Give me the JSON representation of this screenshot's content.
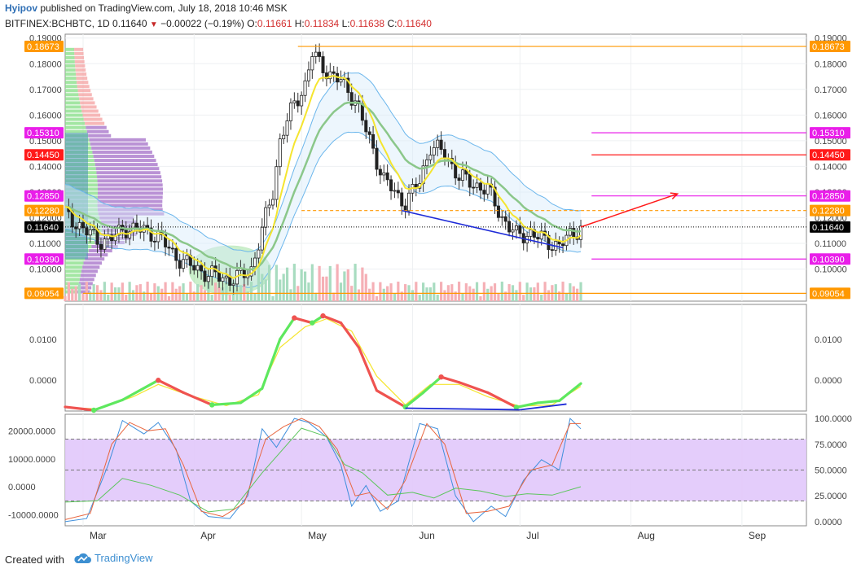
{
  "header": {
    "author": "Hyipov",
    "published_text": "published on TradingView.com, July 18, 2018 10:46 MSK",
    "symbol": "BITFINEX:BCHBTC, 1D",
    "last": "0.11640",
    "change_arrow": "▼",
    "change": "−0.00022 (−0.19%)",
    "open_label": "O:",
    "open": "0.11661",
    "high_label": "H:",
    "high": "0.11834",
    "low_label": "L:",
    "low": "0.11638",
    "close_label": "C:",
    "close": "0.11640"
  },
  "footer": {
    "created_with": "Created with",
    "brand": "TradingView",
    "logo_icon": "tradingview-cloud-icon"
  },
  "colors": {
    "up": "#53b987",
    "down": "#eb4d5c",
    "orange": "#ff9800",
    "magenta": "#e91ee9",
    "red": "#ff1a1a",
    "blue": "#1e2bd8",
    "ema_fast": "#f5e52f",
    "ema_slow": "#8bc78a",
    "band": "#6bb6ec",
    "last_bg": "#000000",
    "rsi_band": "#e1c8fb"
  },
  "chart_data": [
    {
      "type": "candlestick",
      "title": "BITFINEX:BCHBTC, 1D",
      "x_tick_labels": [
        "Mar",
        "Apr",
        "May",
        "Jun",
        "Jul",
        "Aug",
        "Sep"
      ],
      "x_range": [
        "2018-02-24",
        "2018-09-19"
      ],
      "y_range": [
        0.0875,
        0.1915
      ],
      "y_tick_labels": [
        "0.19000",
        "0.18000",
        "0.17000",
        "0.16000",
        "0.15000",
        "0.14000",
        "0.13000",
        "0.12000",
        "0.11000",
        "0.10000"
      ],
      "y_ticks": [
        0.19,
        0.18,
        0.17,
        0.16,
        0.15,
        0.14,
        0.13,
        0.12,
        0.11,
        0.1
      ],
      "grid": true,
      "price_labels": [
        {
          "text": "0.18673",
          "value": 0.18673,
          "color": "orange"
        },
        {
          "text": "0.15310",
          "value": 0.1531,
          "color": "magenta"
        },
        {
          "text": "0.14450",
          "value": 0.1445,
          "color": "red"
        },
        {
          "text": "0.12850",
          "value": 0.1285,
          "color": "magenta"
        },
        {
          "text": "0.12280",
          "value": 0.1228,
          "color": "orange"
        },
        {
          "text": "0.11640",
          "value": 0.1164,
          "color": "last_bg"
        },
        {
          "text": "0.10390",
          "value": 0.1039,
          "color": "magenta"
        },
        {
          "text": "0.09054",
          "value": 0.09054,
          "color": "orange"
        }
      ],
      "horizontal_lines": [
        {
          "value": 0.18673,
          "from": "2018-04-30",
          "color": "orange",
          "style": "solid"
        },
        {
          "value": 0.1531,
          "from": "2018-07-21",
          "color": "magenta",
          "style": "solid"
        },
        {
          "value": 0.1445,
          "from": "2018-07-21",
          "color": "red",
          "style": "solid"
        },
        {
          "value": 0.1285,
          "from": "2018-07-21",
          "color": "magenta",
          "style": "solid"
        },
        {
          "value": 0.1228,
          "from": "2018-05-01",
          "color": "orange",
          "style": "dashed"
        },
        {
          "value": 0.1039,
          "from": "2018-07-21",
          "color": "magenta",
          "style": "solid"
        },
        {
          "value": 0.09054,
          "from": "2018-03-01",
          "color": "orange",
          "style": "solid"
        },
        {
          "value": 0.1164,
          "from": "2018-02-24",
          "color": "last_bg",
          "style": "dotted"
        }
      ],
      "trend_lines": [
        {
          "from": [
            "2018-05-29",
            0.1228
          ],
          "to": [
            "2018-07-13",
            0.1083
          ],
          "color": "blue"
        },
        {
          "from": [
            "2018-07-18",
            0.1164
          ],
          "to": [
            "2018-08-14",
            0.1293
          ],
          "color": "red",
          "arrow": true
        }
      ],
      "ellipse": {
        "center": [
          "2018-04-11",
          0.0995
        ],
        "color": "#5cc65c"
      },
      "closes": [
        [
          "2018-02-24",
          0.121
        ],
        [
          "2018-03-01",
          0.116
        ],
        [
          "2018-03-05",
          0.111
        ],
        [
          "2018-03-09",
          0.112
        ],
        [
          "2018-03-13",
          0.116
        ],
        [
          "2018-03-18",
          0.115
        ],
        [
          "2018-03-22",
          0.113
        ],
        [
          "2018-03-26",
          0.106
        ],
        [
          "2018-03-30",
          0.102
        ],
        [
          "2018-04-02",
          0.1
        ],
        [
          "2018-04-05",
          0.098
        ],
        [
          "2018-04-08",
          0.097
        ],
        [
          "2018-04-11",
          0.096
        ],
        [
          "2018-04-14",
          0.097
        ],
        [
          "2018-04-17",
          0.1
        ],
        [
          "2018-04-19",
          0.11
        ],
        [
          "2018-04-21",
          0.12
        ],
        [
          "2018-04-23",
          0.13
        ],
        [
          "2018-04-25",
          0.15
        ],
        [
          "2018-04-27",
          0.158
        ],
        [
          "2018-04-29",
          0.164
        ],
        [
          "2018-05-02",
          0.172
        ],
        [
          "2018-05-04",
          0.184
        ],
        [
          "2018-05-06",
          0.18
        ],
        [
          "2018-05-09",
          0.176
        ],
        [
          "2018-05-12",
          0.173
        ],
        [
          "2018-05-16",
          0.166
        ],
        [
          "2018-05-20",
          0.15
        ],
        [
          "2018-05-24",
          0.135
        ],
        [
          "2018-05-28",
          0.128
        ],
        [
          "2018-05-30",
          0.126
        ],
        [
          "2018-06-03",
          0.134
        ],
        [
          "2018-06-06",
          0.148
        ],
        [
          "2018-06-10",
          0.145
        ],
        [
          "2018-06-14",
          0.136
        ],
        [
          "2018-06-18",
          0.133
        ],
        [
          "2018-06-22",
          0.131
        ],
        [
          "2018-06-26",
          0.12
        ],
        [
          "2018-06-30",
          0.113
        ],
        [
          "2018-07-04",
          0.114
        ],
        [
          "2018-07-08",
          0.111
        ],
        [
          "2018-07-12",
          0.109
        ],
        [
          "2018-07-15",
          0.113
        ],
        [
          "2018-07-18",
          0.1164
        ]
      ]
    },
    {
      "type": "line",
      "x_range": [
        "2018-02-24",
        "2018-09-19"
      ],
      "y_range": [
        -0.0075,
        0.0185
      ],
      "y_tick_labels": [
        "0.0100",
        "0.0000"
      ],
      "y_ticks": [
        0.01,
        0.0
      ],
      "series": [
        {
          "color": "ema_fast",
          "values": [
            [
              "2018-02-24",
              -0.0066
            ],
            [
              "2018-03-05",
              -0.007
            ],
            [
              "2018-03-15",
              -0.004
            ],
            [
              "2018-03-22",
              -0.001
            ],
            [
              "2018-03-30",
              -0.0035
            ],
            [
              "2018-04-10",
              -0.0062
            ],
            [
              "2018-04-19",
              -0.0035
            ],
            [
              "2018-04-25",
              0.008
            ],
            [
              "2018-05-02",
              0.013
            ],
            [
              "2018-05-08",
              0.015
            ],
            [
              "2018-05-15",
              0.012
            ],
            [
              "2018-05-22",
              0.001
            ],
            [
              "2018-05-30",
              -0.006
            ],
            [
              "2018-06-06",
              -0.001
            ],
            [
              "2018-06-14",
              -0.001
            ],
            [
              "2018-06-22",
              -0.004
            ],
            [
              "2018-07-01",
              -0.0063
            ],
            [
              "2018-07-10",
              -0.006
            ],
            [
              "2018-07-18",
              -0.0015
            ]
          ]
        },
        {
          "color": "macd",
          "values": [
            [
              "2018-02-24",
              -0.0065
            ],
            [
              "2018-03-04",
              -0.0073
            ],
            [
              "2018-03-12",
              -0.0048
            ],
            [
              "2018-03-22",
              0.0
            ],
            [
              "2018-03-29",
              -0.003
            ],
            [
              "2018-04-06",
              -0.006
            ],
            [
              "2018-04-14",
              -0.0055
            ],
            [
              "2018-04-20",
              -0.002
            ],
            [
              "2018-04-25",
              0.01
            ],
            [
              "2018-04-29",
              0.0152
            ],
            [
              "2018-05-04",
              0.014
            ],
            [
              "2018-05-07",
              0.0157
            ],
            [
              "2018-05-12",
              0.014
            ],
            [
              "2018-05-17",
              0.008
            ],
            [
              "2018-05-22",
              -0.0025
            ],
            [
              "2018-05-30",
              -0.0065
            ],
            [
              "2018-06-04",
              -0.003
            ],
            [
              "2018-06-09",
              0.0008
            ],
            [
              "2018-06-14",
              -0.0005
            ],
            [
              "2018-06-22",
              -0.003
            ],
            [
              "2018-06-30",
              -0.0066
            ],
            [
              "2018-07-06",
              -0.0055
            ],
            [
              "2018-07-12",
              -0.005
            ],
            [
              "2018-07-18",
              -0.0008
            ]
          ]
        }
      ],
      "trend_lines": [
        {
          "from": [
            "2018-05-30",
            -0.0068
          ],
          "to": [
            "2018-07-01",
            -0.0072
          ],
          "color": "blue"
        },
        {
          "from": [
            "2018-07-01",
            -0.0072
          ],
          "to": [
            "2018-07-14",
            -0.0058
          ],
          "color": "blue"
        }
      ]
    },
    {
      "type": "line",
      "x_range": [
        "2018-02-24",
        "2018-09-19"
      ],
      "left_axis_range": [
        -14000,
        26000
      ],
      "left_tick_labels": [
        "20000.0000",
        "10000.0000",
        "0.0000",
        "-10000.0000"
      ],
      "left_ticks": [
        20000,
        10000,
        0,
        -10000
      ],
      "right_axis_range": [
        -4,
        104
      ],
      "right_tick_labels": [
        "100.0000",
        "75.0000",
        "50.0000",
        "25.0000",
        "0.0000"
      ],
      "right_ticks": [
        100,
        75,
        50,
        25,
        0
      ],
      "band": [
        20,
        80
      ],
      "center_line": 50,
      "series": [
        {
          "color": "#3f8fdc",
          "axis": "right",
          "values": [
            [
              "2018-02-24",
              0
            ],
            [
              "2018-03-02",
              3
            ],
            [
              "2018-03-08",
              55
            ],
            [
              "2018-03-12",
              98
            ],
            [
              "2018-03-18",
              85
            ],
            [
              "2018-03-22",
              96
            ],
            [
              "2018-03-27",
              70
            ],
            [
              "2018-03-31",
              20
            ],
            [
              "2018-04-05",
              5
            ],
            [
              "2018-04-11",
              3
            ],
            [
              "2018-04-16",
              25
            ],
            [
              "2018-04-20",
              90
            ],
            [
              "2018-04-24",
              72
            ],
            [
              "2018-04-29",
              100
            ],
            [
              "2018-05-03",
              96
            ],
            [
              "2018-05-08",
              82
            ],
            [
              "2018-05-12",
              55
            ],
            [
              "2018-05-15",
              15
            ],
            [
              "2018-05-19",
              35
            ],
            [
              "2018-05-23",
              10
            ],
            [
              "2018-05-28",
              20
            ],
            [
              "2018-06-03",
              95
            ],
            [
              "2018-06-08",
              90
            ],
            [
              "2018-06-13",
              25
            ],
            [
              "2018-06-18",
              0
            ],
            [
              "2018-06-23",
              15
            ],
            [
              "2018-06-27",
              5
            ],
            [
              "2018-07-02",
              40
            ],
            [
              "2018-07-07",
              60
            ],
            [
              "2018-07-12",
              50
            ],
            [
              "2018-07-15",
              100
            ],
            [
              "2018-07-18",
              90
            ]
          ]
        },
        {
          "color": "#e8663f",
          "axis": "right",
          "values": [
            [
              "2018-02-24",
              2
            ],
            [
              "2018-03-03",
              8
            ],
            [
              "2018-03-09",
              75
            ],
            [
              "2018-03-14",
              96
            ],
            [
              "2018-03-19",
              88
            ],
            [
              "2018-03-24",
              90
            ],
            [
              "2018-03-29",
              55
            ],
            [
              "2018-04-03",
              10
            ],
            [
              "2018-04-09",
              5
            ],
            [
              "2018-04-15",
              18
            ],
            [
              "2018-04-21",
              80
            ],
            [
              "2018-04-26",
              92
            ],
            [
              "2018-05-01",
              100
            ],
            [
              "2018-05-06",
              92
            ],
            [
              "2018-05-11",
              70
            ],
            [
              "2018-05-16",
              25
            ],
            [
              "2018-05-20",
              28
            ],
            [
              "2018-05-25",
              12
            ],
            [
              "2018-05-30",
              40
            ],
            [
              "2018-06-05",
              95
            ],
            [
              "2018-06-10",
              75
            ],
            [
              "2018-06-16",
              8
            ],
            [
              "2018-06-22",
              10
            ],
            [
              "2018-06-28",
              15
            ],
            [
              "2018-07-04",
              50
            ],
            [
              "2018-07-10",
              55
            ],
            [
              "2018-07-15",
              95
            ],
            [
              "2018-07-18",
              95
            ]
          ]
        },
        {
          "color": "#5cc65c",
          "axis": "left",
          "values": [
            [
              "2018-02-24",
              -5500
            ],
            [
              "2018-03-05",
              -5000
            ],
            [
              "2018-03-12",
              3000
            ],
            [
              "2018-03-20",
              500
            ],
            [
              "2018-03-28",
              -3000
            ],
            [
              "2018-04-05",
              -9000
            ],
            [
              "2018-04-12",
              -8000
            ],
            [
              "2018-04-20",
              5000
            ],
            [
              "2018-05-01",
              21000
            ],
            [
              "2018-05-08",
              18000
            ],
            [
              "2018-05-13",
              8000
            ],
            [
              "2018-05-18",
              5000
            ],
            [
              "2018-05-25",
              -3000
            ],
            [
              "2018-06-01",
              -2000
            ],
            [
              "2018-06-07",
              -4000
            ],
            [
              "2018-06-13",
              -500
            ],
            [
              "2018-06-20",
              -1500
            ],
            [
              "2018-06-27",
              -3500
            ],
            [
              "2018-07-03",
              -2500
            ],
            [
              "2018-07-10",
              -3000
            ],
            [
              "2018-07-18",
              0
            ]
          ]
        }
      ]
    }
  ]
}
